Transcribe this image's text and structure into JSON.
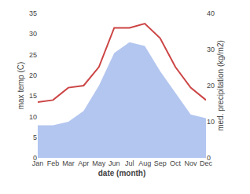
{
  "chart_data": {
    "type": "line",
    "xlabel": "date (month)",
    "ylabel": "max temp (C)",
    "y2label": "med. precipitation (kg/m2)",
    "categories": [
      "Jan",
      "Feb",
      "Mar",
      "Apr",
      "May",
      "Jun",
      "Jul",
      "Aug",
      "Sep",
      "Oct",
      "Nov",
      "Dec"
    ],
    "series": [
      {
        "type": "area",
        "axis": "y2",
        "color": "#b3c6f0",
        "values": [
          9,
          9,
          10,
          13,
          20,
          29,
          32,
          31,
          24,
          18,
          12,
          11
        ]
      },
      {
        "type": "line",
        "color": "#cc4444",
        "values": [
          13.5,
          14.0,
          17.0,
          17.5,
          22.0,
          31.5,
          31.5,
          32.5,
          29.0,
          22.0,
          17.0,
          14.0
        ]
      }
    ],
    "ylim": [
      0,
      35
    ],
    "yticks": [
      0,
      5,
      10,
      15,
      20,
      25,
      30,
      35
    ],
    "y2lim": [
      0,
      40
    ],
    "y2ticks": [
      0,
      10,
      20,
      30,
      40
    ],
    "grid": false
  }
}
